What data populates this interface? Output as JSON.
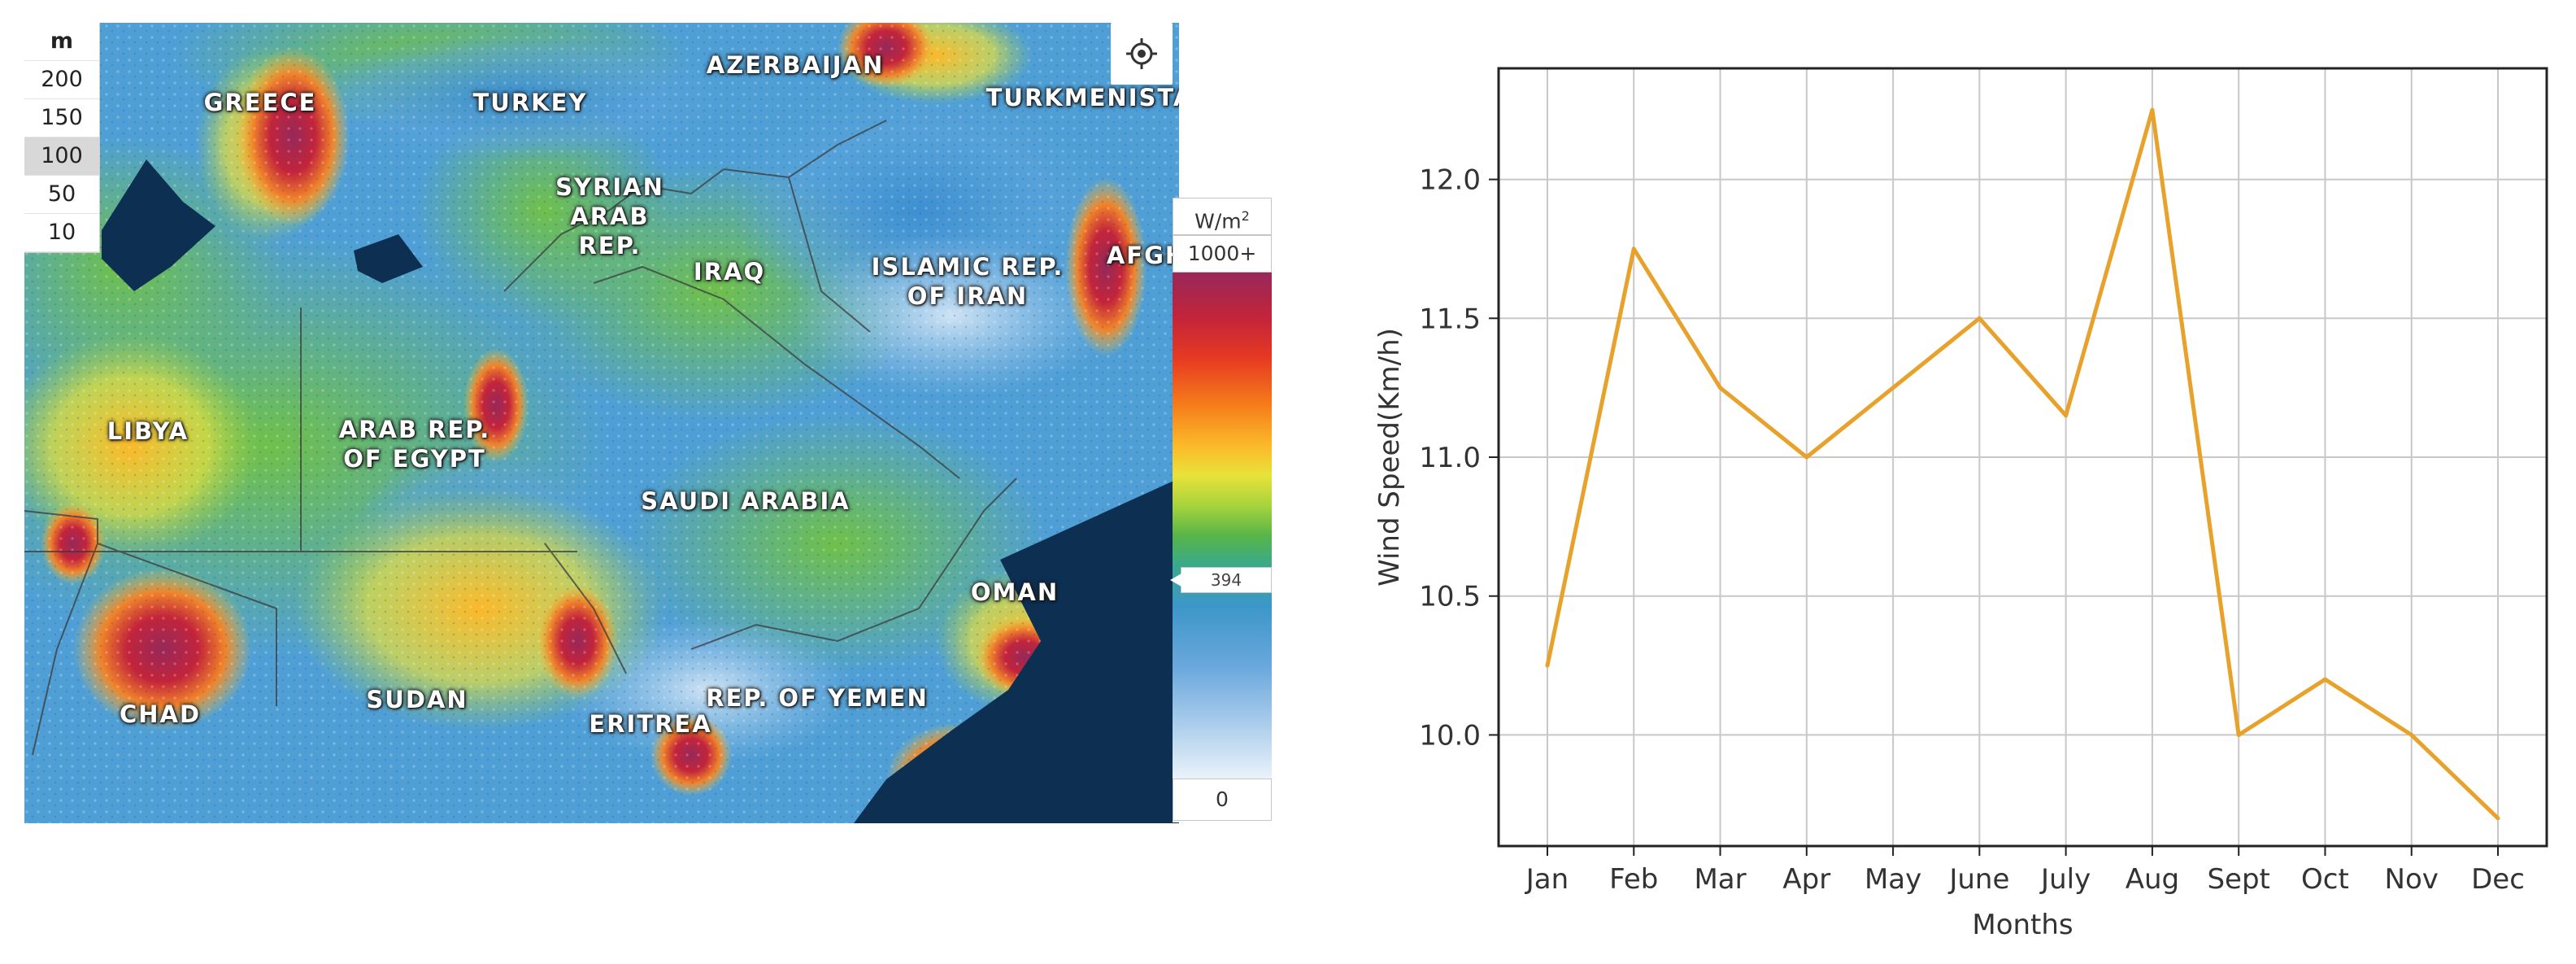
{
  "map": {
    "elevation_legend": {
      "unit": "m",
      "levels": [
        "200",
        "150",
        "100",
        "50",
        "10"
      ],
      "selected": "100"
    },
    "irradiance_legend": {
      "unit_text": "W/m",
      "unit_sup": "2",
      "max_label": "1000+",
      "min_label": "0",
      "marker_value": "394",
      "marker_fraction": 0.394
    },
    "locate_icon": "crosshair-target-icon",
    "country_labels": [
      {
        "id": "greece",
        "text": "GREECE"
      },
      {
        "id": "turkey",
        "text": "TURKEY"
      },
      {
        "id": "azerbaijan",
        "text": "AZERBAIJAN"
      },
      {
        "id": "turkmenistan",
        "text": "TURKMENISTA"
      },
      {
        "id": "syria",
        "text": "SYRIAN\nARAB\nREP."
      },
      {
        "id": "iraq",
        "text": "IRAQ"
      },
      {
        "id": "iran",
        "text": "ISLAMIC REP.\nOF IRAN"
      },
      {
        "id": "afghanistan",
        "text": "AFGH"
      },
      {
        "id": "libya",
        "text": "LIBYA"
      },
      {
        "id": "egypt",
        "text": "ARAB REP.\nOF EGYPT"
      },
      {
        "id": "saudi",
        "text": "SAUDI ARABIA"
      },
      {
        "id": "oman",
        "text": "OMAN"
      },
      {
        "id": "chad",
        "text": "CHAD"
      },
      {
        "id": "sudan",
        "text": "SUDAN"
      },
      {
        "id": "eritrea",
        "text": "ERITREA"
      },
      {
        "id": "yemen",
        "text": "REP. OF YEMEN"
      }
    ]
  },
  "chart_data": {
    "type": "line",
    "categories": [
      "Jan",
      "Feb",
      "Mar",
      "Apr",
      "May",
      "June",
      "July",
      "Aug",
      "Sept",
      "Oct",
      "Nov",
      "Dec"
    ],
    "series": [
      {
        "values": [
          10.25,
          11.75,
          11.25,
          11.0,
          11.25,
          11.5,
          11.15,
          12.25,
          10.0,
          10.2,
          10.0,
          9.7
        ],
        "color": "#e8a22b"
      }
    ],
    "title": "",
    "xlabel": "Months",
    "ylabel": "Wind Speed(Km/h)",
    "ylim": [
      9.6,
      12.4
    ],
    "yticks": [
      "10.0",
      "10.5",
      "11.0",
      "11.5",
      "12.0"
    ],
    "grid": true
  }
}
